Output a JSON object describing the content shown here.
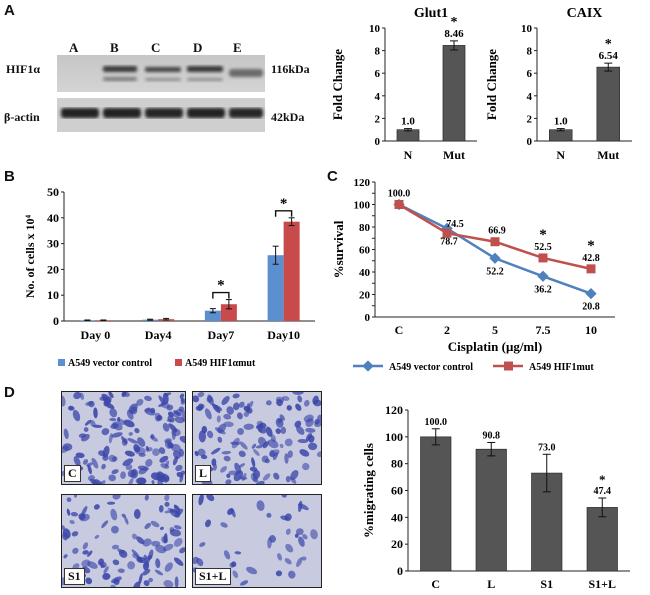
{
  "panel_labels": {
    "a": "A",
    "b": "B",
    "c": "C",
    "d": "D"
  },
  "blot": {
    "lanes": [
      "A",
      "B",
      "C",
      "D",
      "E"
    ],
    "rows": [
      {
        "name": "HIF1α",
        "kda": "116kDa"
      },
      {
        "name": "β-actin",
        "kda": "42kDa"
      }
    ]
  },
  "micrographs": [
    {
      "label": "C"
    },
    {
      "label": "L"
    },
    {
      "label": "S1"
    },
    {
      "label": "S1+L"
    }
  ],
  "colors": {
    "bar_dark": "#555555",
    "blue": "#5b8fd0",
    "red": "#c84a4a",
    "line_blue": "#4f81bd",
    "line_red": "#c0504d"
  },
  "chart_data": [
    {
      "id": "glut1",
      "type": "bar",
      "title": "Glut1",
      "ylabel": "Fold Change",
      "categories": [
        "N",
        "Mut"
      ],
      "values": [
        1.0,
        8.46
      ],
      "value_labels": [
        "1.0",
        "8.46"
      ],
      "errors": [
        0.1,
        0.4
      ],
      "significance": [
        "",
        "*"
      ],
      "ylim": [
        0,
        10
      ],
      "yticks": [
        0,
        2,
        4,
        6,
        8,
        10
      ],
      "ytick_labels": [
        "0",
        "2",
        "4",
        "6",
        "8",
        "10"
      ]
    },
    {
      "id": "caix",
      "type": "bar",
      "title": "CAIX",
      "ylabel": "Fold Change",
      "categories": [
        "N",
        "Mut"
      ],
      "values": [
        1.0,
        6.54
      ],
      "value_labels": [
        "1.0",
        "6.54"
      ],
      "errors": [
        0.1,
        0.35
      ],
      "significance": [
        "",
        "*"
      ],
      "ylim": [
        0,
        10
      ],
      "yticks": [
        0,
        2,
        4,
        6,
        8,
        10
      ],
      "ytick_labels": [
        "0",
        "2",
        "4",
        "6",
        "8",
        "10"
      ]
    },
    {
      "id": "cells",
      "type": "bar",
      "ylabel": "No. of cells x 10⁴",
      "categories": [
        "Day 0",
        "Day4",
        "Day7",
        "Day10"
      ],
      "series": [
        {
          "name": "A549 vector control",
          "values": [
            0.3,
            0.5,
            4.0,
            25.5
          ],
          "errors": [
            0.1,
            0.2,
            0.8,
            3.5
          ]
        },
        {
          "name": "A549 HIF1αmut",
          "values": [
            0.3,
            0.7,
            6.5,
            38.5
          ],
          "errors": [
            0.1,
            0.3,
            1.8,
            1.5
          ]
        }
      ],
      "significance": [
        "",
        "",
        "*",
        "*"
      ],
      "ylim": [
        0,
        50
      ],
      "yticks": [
        0,
        10,
        20,
        30,
        40,
        50
      ],
      "ytick_labels": [
        "0",
        "10",
        "20",
        "30",
        "40",
        "50"
      ]
    },
    {
      "id": "survival",
      "type": "line",
      "ylabel": "%survival",
      "xlabel": "Cisplatin (μg/ml)",
      "categories": [
        "C",
        "2",
        "5",
        "7.5",
        "10"
      ],
      "series": [
        {
          "name": "A549 vector control",
          "values": [
            100,
            78.7,
            52.2,
            36.2,
            20.8
          ],
          "labels": [
            "",
            "78.7",
            "52.2",
            "36.2",
            "20.8"
          ]
        },
        {
          "name": "A549 HIF1mut",
          "values": [
            100,
            74.5,
            66.9,
            52.5,
            42.8
          ],
          "labels": [
            "100.0",
            "74.5",
            "66.9",
            "52.5",
            "42.8"
          ]
        }
      ],
      "significance": [
        "",
        "",
        "",
        "*",
        "*"
      ],
      "ylim": [
        0,
        120
      ],
      "yticks": [
        0,
        10,
        20,
        30,
        40,
        50,
        60,
        70,
        80,
        90,
        100,
        110,
        120
      ],
      "ytick_labels": [
        "0",
        "",
        "20",
        "",
        "40",
        "",
        "60",
        "",
        "80",
        "",
        "100",
        "",
        "120"
      ]
    },
    {
      "id": "migration",
      "type": "bar",
      "ylabel": "%migrating cells",
      "categories": [
        "C",
        "L",
        "S1",
        "S1+L"
      ],
      "values": [
        100.0,
        90.8,
        73.0,
        47.4
      ],
      "value_labels": [
        "100.0",
        "90.8",
        "73.0",
        "47.4"
      ],
      "errors": [
        6,
        5,
        14,
        7
      ],
      "significance": [
        "",
        "",
        "",
        "*"
      ],
      "ylim": [
        0,
        120
      ],
      "yticks": [
        0,
        20,
        40,
        60,
        80,
        100,
        120
      ],
      "ytick_labels": [
        "0",
        "20",
        "40",
        "60",
        "80",
        "100",
        "120"
      ]
    }
  ]
}
